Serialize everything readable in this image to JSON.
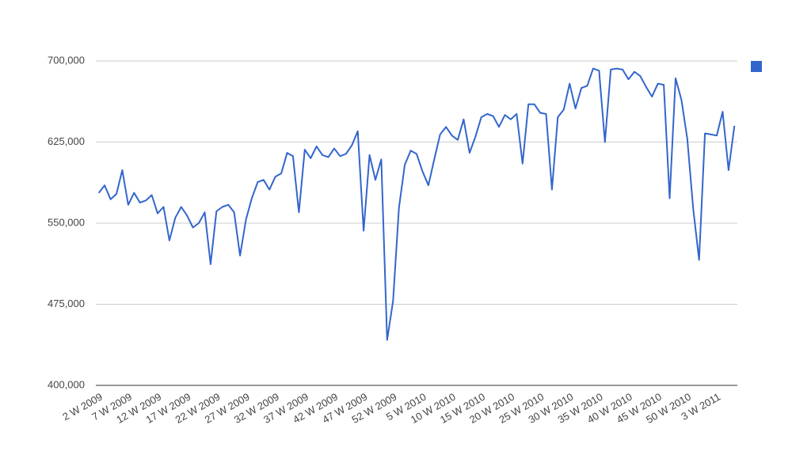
{
  "chart_data": {
    "type": "line",
    "categories": [
      "2 W 2009",
      null,
      null,
      null,
      null,
      "7 W 2009",
      null,
      null,
      null,
      null,
      "12 W 2009",
      null,
      null,
      null,
      null,
      "17 W 2009",
      null,
      null,
      null,
      null,
      "22 W 2009",
      null,
      null,
      null,
      null,
      "27 W 2009",
      null,
      null,
      null,
      null,
      "32 W 2009",
      null,
      null,
      null,
      null,
      "37 W 2009",
      null,
      null,
      null,
      null,
      "42 W 2009",
      null,
      null,
      null,
      null,
      "47 W 2009",
      null,
      null,
      null,
      null,
      "52 W 2009",
      null,
      null,
      null,
      null,
      "5 W 2010",
      null,
      null,
      null,
      null,
      "10 W 2010",
      null,
      null,
      null,
      null,
      "15 W 2010",
      null,
      null,
      null,
      null,
      "20 W 2010",
      null,
      null,
      null,
      null,
      "25 W 2010",
      null,
      null,
      null,
      null,
      "30 W 2010",
      null,
      null,
      null,
      null,
      "35 W 2010",
      null,
      null,
      null,
      null,
      "40 W 2010",
      null,
      null,
      null,
      null,
      "45 W 2010",
      null,
      null,
      null,
      null,
      "50 W 2010",
      null,
      null,
      null,
      null,
      "3 W 2011",
      null,
      null,
      null
    ],
    "series": [
      {
        "color": "#3366cc",
        "values": [
          578000,
          585000,
          572000,
          577000,
          599000,
          567000,
          578000,
          569000,
          571000,
          576000,
          559000,
          565000,
          534000,
          555000,
          565000,
          557000,
          546000,
          550000,
          560000,
          512000,
          561000,
          565000,
          567000,
          560000,
          520000,
          553000,
          573000,
          588000,
          590000,
          581000,
          593000,
          596000,
          615000,
          612000,
          560000,
          618000,
          610000,
          621000,
          613000,
          611000,
          619000,
          612000,
          614000,
          622000,
          635000,
          543000,
          613000,
          590000,
          609000,
          442000,
          478000,
          564000,
          604000,
          617000,
          614000,
          598000,
          585000,
          609000,
          632000,
          639000,
          631000,
          627000,
          646000,
          615000,
          630000,
          648000,
          651000,
          649000,
          639000,
          650000,
          646000,
          651000,
          605000,
          660000,
          660000,
          652000,
          651000,
          581000,
          648000,
          655000,
          679000,
          656000,
          675000,
          677000,
          693000,
          691000,
          625000,
          692000,
          693000,
          692000,
          683000,
          690000,
          686000,
          676000,
          667000,
          679000,
          678000,
          573000,
          684000,
          664000,
          628000,
          563000,
          516000,
          633000,
          632000,
          631000,
          653000,
          599000,
          640000
        ]
      }
    ],
    "ylim": [
      400000,
      700000
    ],
    "yticks": [
      {
        "value": 400000,
        "label": "400,000"
      },
      {
        "value": 475000,
        "label": "475,000"
      },
      {
        "value": 550000,
        "label": "550,000"
      },
      {
        "value": 625000,
        "label": "625,000"
      },
      {
        "value": 700000,
        "label": "700,000"
      }
    ],
    "grid": true
  }
}
